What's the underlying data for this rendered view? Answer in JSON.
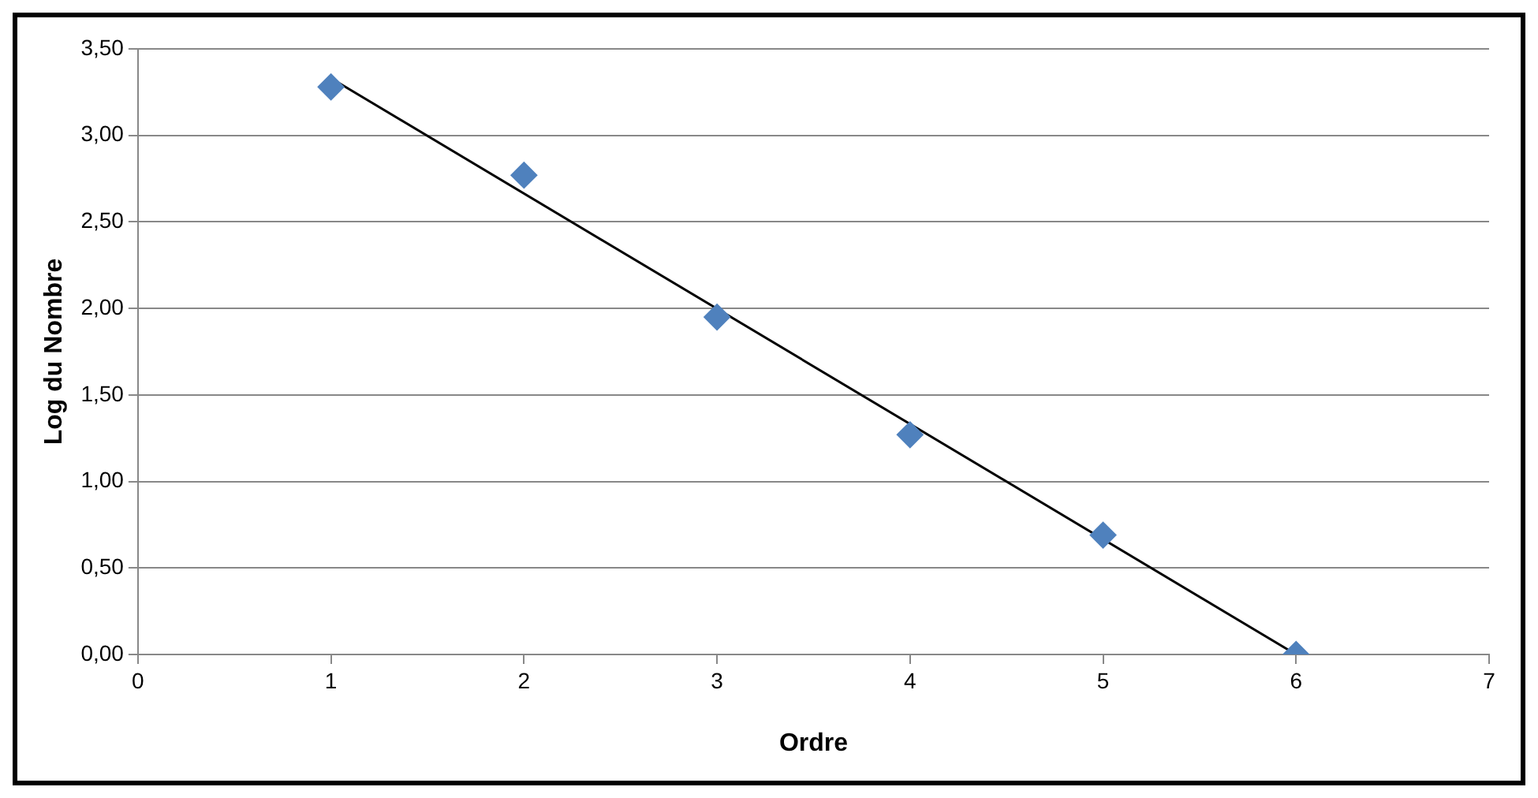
{
  "chart_data": {
    "type": "scatter",
    "xlabel": "Ordre",
    "ylabel": "Log du Nombre",
    "xlim": [
      0,
      7
    ],
    "xticks": [
      0,
      1,
      2,
      3,
      4,
      5,
      6,
      7
    ],
    "ylim": [
      0,
      3.5
    ],
    "yticks": [
      {
        "value": 0,
        "label": "0,00"
      },
      {
        "value": 0.5,
        "label": "0,50"
      },
      {
        "value": 1,
        "label": "1,00"
      },
      {
        "value": 1.5,
        "label": "1,50"
      },
      {
        "value": 2,
        "label": "2,00"
      },
      {
        "value": 2.5,
        "label": "2,50"
      },
      {
        "value": 3,
        "label": "3,00"
      },
      {
        "value": 3.5,
        "label": "3,50"
      }
    ],
    "grid": "y",
    "legend": false,
    "series": [
      {
        "color": "#4f81bd",
        "marker": "diamond",
        "x": [
          1,
          2,
          3,
          4,
          5,
          6
        ],
        "values": [
          3.28,
          2.77,
          1.95,
          1.27,
          0.69,
          0.0
        ]
      },
      {
        "type": "line",
        "color": "#000000",
        "marker": "none",
        "line_style": "solid",
        "x": [
          1,
          6
        ],
        "values": [
          3.33,
          0.0
        ]
      }
    ]
  }
}
